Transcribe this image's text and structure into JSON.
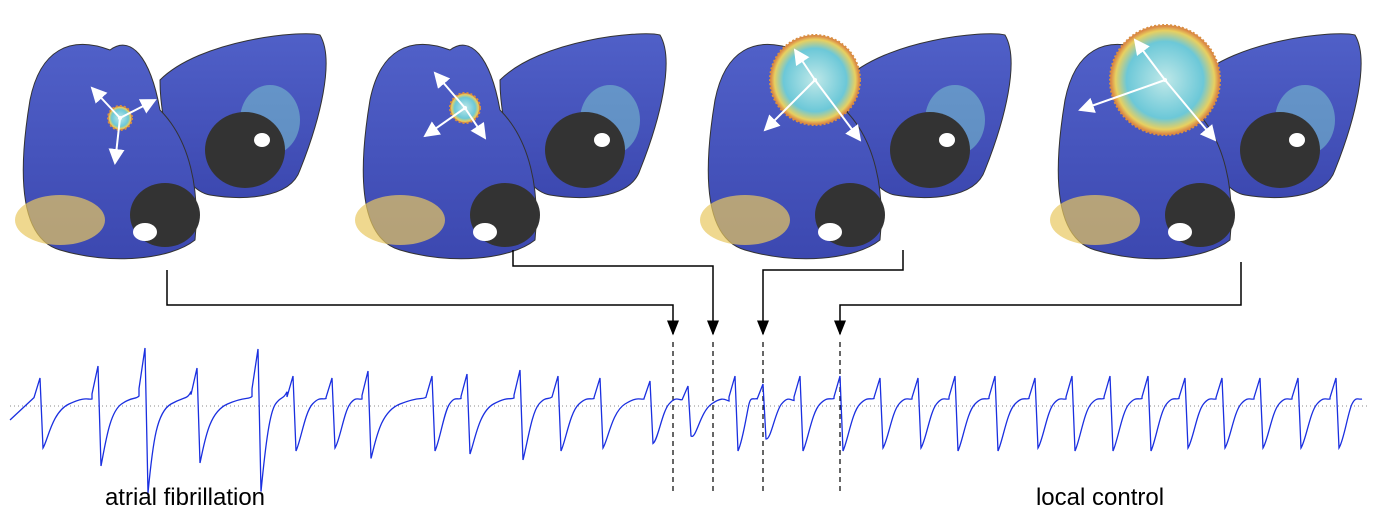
{
  "labels": {
    "left": "atrial fibrillation",
    "right": "local control"
  }
}
